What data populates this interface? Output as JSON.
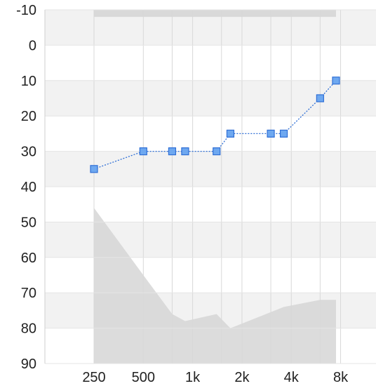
{
  "chart_data": {
    "type": "line",
    "title": "",
    "xlabel": "",
    "ylabel": "",
    "x_scale": "log2",
    "x_tick_values": [
      250,
      500,
      1000,
      2000,
      4000,
      8000
    ],
    "x_tick_labels": [
      "250",
      "500",
      "1k",
      "2k",
      "4k",
      "8k"
    ],
    "x_grid_values": [
      250,
      500,
      750,
      1000,
      1500,
      2000,
      3000,
      4000,
      6000,
      8000
    ],
    "ylim": [
      -10,
      90
    ],
    "y_inverted": true,
    "y_tick_values": [
      -10,
      0,
      10,
      20,
      30,
      40,
      50,
      60,
      70,
      80,
      90
    ],
    "grid": true,
    "series": [
      {
        "kind": "line-markers",
        "color": "#2f6fd6",
        "marker_color": "#6ea8f0",
        "points": [
          {
            "x": 250,
            "y": 35
          },
          {
            "x": 500,
            "y": 30
          },
          {
            "x": 750,
            "y": 30
          },
          {
            "x": 900,
            "y": 30
          },
          {
            "x": 1400,
            "y": 30
          },
          {
            "x": 1700,
            "y": 25
          },
          {
            "x": 3000,
            "y": 25
          },
          {
            "x": 3600,
            "y": 25
          },
          {
            "x": 6000,
            "y": 15
          },
          {
            "x": 7500,
            "y": 10
          }
        ]
      },
      {
        "kind": "shaded-area",
        "color": "#d6d6d6",
        "points": [
          {
            "x": 250,
            "y": 46
          },
          {
            "x": 500,
            "y": 65
          },
          {
            "x": 750,
            "y": 76
          },
          {
            "x": 900,
            "y": 78
          },
          {
            "x": 1400,
            "y": 76
          },
          {
            "x": 1700,
            "y": 80
          },
          {
            "x": 3600,
            "y": 74
          },
          {
            "x": 6000,
            "y": 72
          },
          {
            "x": 7500,
            "y": 72
          }
        ]
      }
    ],
    "top_band": {
      "x_from": 250,
      "x_to": 7500,
      "y_from": -10,
      "y_to": -8,
      "color": "#d9d9d9"
    }
  }
}
